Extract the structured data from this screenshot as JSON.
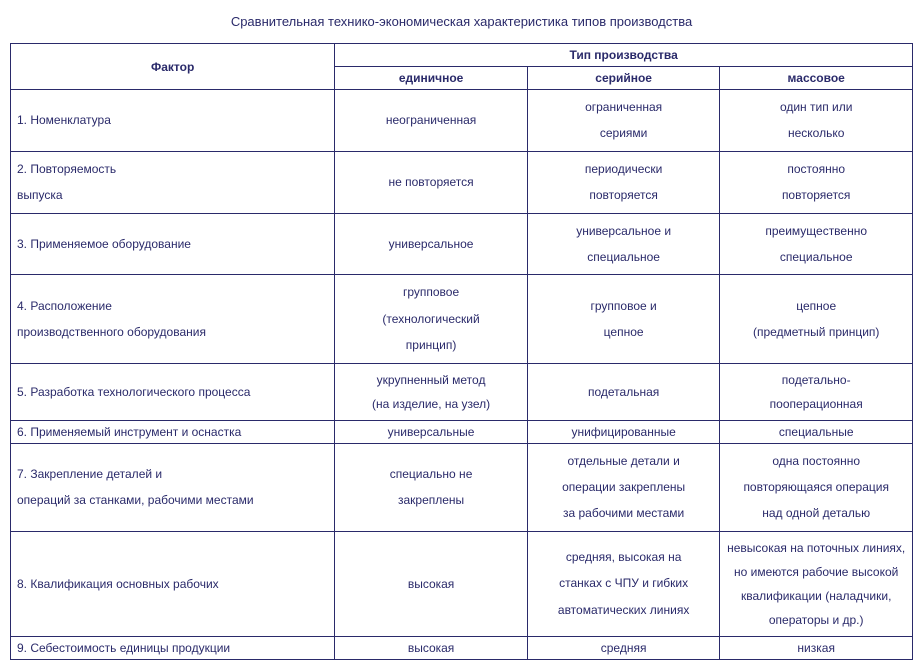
{
  "title": "Сравнительная технико-экономическая характеристика типов производства",
  "headers": {
    "factor": "Фактор",
    "group": "Тип производства",
    "c1": "единичное",
    "c2": "серийное",
    "c3": "массовое"
  },
  "rows": [
    {
      "factor": "1. Номенклатура",
      "c1": "неограниченная",
      "c2": "ограниченная\nсериями",
      "c3": "один тип или\nнесколько"
    },
    {
      "factor": "2. Повторяемость\nвыпуска",
      "c1": "не повторяется",
      "c2": "периодически\nповторяется",
      "c3": "постоянно\nповторяется"
    },
    {
      "factor": "3. Применяемое оборудование",
      "c1": "универсальное",
      "c2": "универсальное и\nспециальное",
      "c3": "преимущественно\nспециальное"
    },
    {
      "factor": "4. Расположение\nпроизводственного оборудования",
      "c1": "групповое\n(технологический\nпринцип)",
      "c2": "групповое и\nцепное",
      "c3": "цепное\n(предметный принцип)"
    },
    {
      "factor": "5. Разработка          технологического процесса",
      "c1": "укрупненный метод\n(на изделие, на узел)",
      "c2": "подетальная",
      "c3": "подетально-\nпооперационная"
    },
    {
      "factor": "6. Применяемый инструмент и оснастка",
      "c1": "универсальные",
      "c2": "унифицированные",
      "c3": "специальные"
    },
    {
      "factor": "7. Закрепление деталей и\nопераций   за   станками,   рабочими местами",
      "c1": "специально не\nзакреплены",
      "c2": "отдельные детали и\nоперации закреплены\nза рабочими местами",
      "c3": "одна постоянно\nповторяющаяся операция\nнад одной деталью"
    },
    {
      "factor": "8. Квалификация основных рабочих",
      "c1": "высокая",
      "c2": "средняя, высокая на\nстанках с ЧПУ и гибких\nавтоматических линиях",
      "c3": "невысокая на поточных линиях,\nно имеются рабочие высокой\nквалификации (наладчики,\nоператоры и др.)"
    },
    {
      "factor": "9. Себестоимость единицы продукции",
      "c1": "высокая",
      "c2": "средняя",
      "c3": "низкая"
    }
  ]
}
